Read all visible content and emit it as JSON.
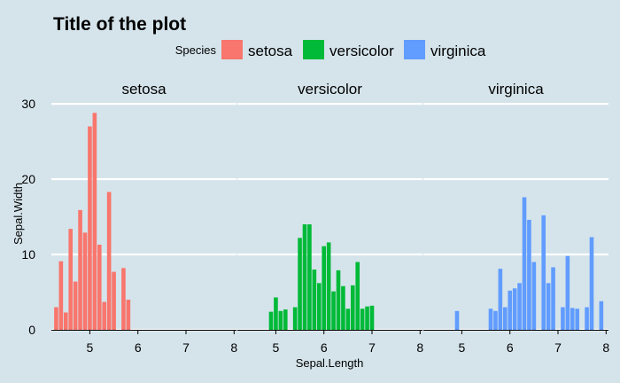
{
  "chart_data": {
    "type": "bar",
    "title": "Title of the plot",
    "xlabel": "Sepal.Length",
    "ylabel": "Sepal.Width",
    "legend": {
      "title": "Species",
      "position": "top",
      "entries": [
        {
          "name": "setosa",
          "color": "#f8766d"
        },
        {
          "name": "versicolor",
          "color": "#00ba38"
        },
        {
          "name": "virginica",
          "color": "#619cff"
        }
      ]
    },
    "facet_by": "Species",
    "shared_x_range": [
      4.2,
      8.05
    ],
    "x_ticks": [
      5,
      6,
      7,
      8
    ],
    "ylim": [
      0,
      30
    ],
    "y_ticks": [
      0,
      10,
      20,
      30
    ],
    "grid": "horizontal-major",
    "bar_width": 0.085,
    "panels": [
      {
        "name": "setosa",
        "color": "#f8766d",
        "x": [
          4.3,
          4.4,
          4.5,
          4.6,
          4.7,
          4.8,
          4.9,
          5.0,
          5.1,
          5.2,
          5.3,
          5.4,
          5.5,
          5.7,
          5.8
        ],
        "y": [
          3.0,
          9.1,
          2.3,
          13.4,
          6.4,
          15.9,
          12.9,
          27.0,
          28.8,
          11.3,
          3.7,
          18.3,
          7.7,
          8.2,
          4.0
        ]
      },
      {
        "name": "versicolor",
        "color": "#00ba38",
        "x": [
          4.9,
          5.0,
          5.1,
          5.2,
          5.4,
          5.5,
          5.6,
          5.7,
          5.8,
          5.9,
          6.0,
          6.1,
          6.2,
          6.3,
          6.4,
          6.5,
          6.6,
          6.7,
          6.8,
          6.9,
          7.0
        ],
        "y": [
          2.4,
          4.3,
          2.5,
          2.7,
          3.0,
          12.2,
          14.0,
          14.0,
          8.0,
          6.2,
          11.1,
          11.6,
          5.1,
          7.9,
          5.8,
          2.8,
          5.9,
          9.0,
          2.8,
          3.1,
          3.2
        ]
      },
      {
        "name": "virginica",
        "color": "#619cff",
        "x": [
          4.9,
          5.6,
          5.7,
          5.8,
          5.9,
          6.0,
          6.1,
          6.2,
          6.3,
          6.4,
          6.5,
          6.7,
          6.8,
          6.9,
          7.1,
          7.2,
          7.3,
          7.4,
          7.6,
          7.7,
          7.9
        ],
        "y": [
          2.5,
          2.8,
          2.5,
          8.1,
          3.0,
          5.2,
          5.5,
          6.2,
          17.6,
          14.6,
          9.0,
          15.2,
          6.2,
          8.3,
          3.0,
          9.8,
          2.9,
          2.8,
          3.0,
          12.3,
          3.8
        ]
      }
    ]
  }
}
